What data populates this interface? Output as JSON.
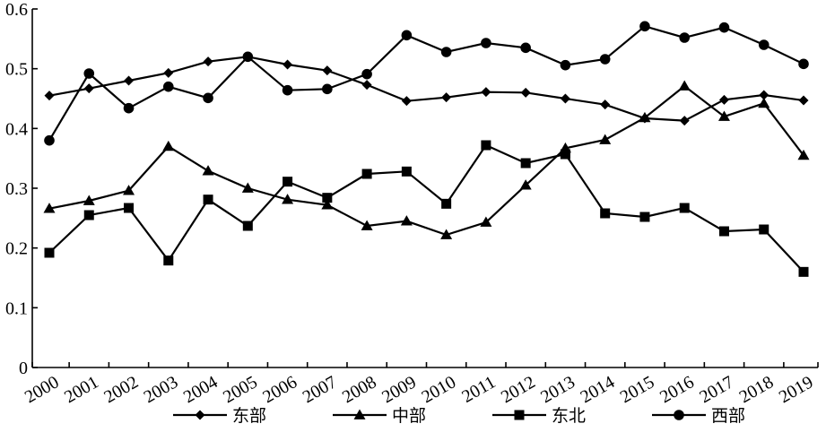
{
  "chart_data": {
    "type": "line",
    "x": [
      "2000",
      "2001",
      "2002",
      "2003",
      "2004",
      "2005",
      "2006",
      "2007",
      "2008",
      "2009",
      "2010",
      "2011",
      "2012",
      "2013",
      "2014",
      "2015",
      "2016",
      "2017",
      "2018",
      "2019"
    ],
    "y_ticks": [
      "0",
      "0.1",
      "0.2",
      "0.3",
      "0.4",
      "0.5",
      "0.6"
    ],
    "ylim": [
      0,
      0.6
    ],
    "grid": false,
    "legend_position": "bottom",
    "series": [
      {
        "name": "东部",
        "marker": "diamond",
        "values": [
          0.455,
          0.467,
          0.48,
          0.493,
          0.512,
          0.52,
          0.507,
          0.497,
          0.473,
          0.446,
          0.452,
          0.461,
          0.46,
          0.45,
          0.44,
          0.417,
          0.413,
          0.448,
          0.456,
          0.447
        ]
      },
      {
        "name": "中部",
        "marker": "triangle",
        "values": [
          0.266,
          0.279,
          0.296,
          0.37,
          0.329,
          0.3,
          0.281,
          0.272,
          0.237,
          0.245,
          0.222,
          0.243,
          0.305,
          0.367,
          0.381,
          0.418,
          0.471,
          0.42,
          0.442,
          0.355
        ]
      },
      {
        "name": "东北",
        "marker": "square",
        "values": [
          0.192,
          0.255,
          0.267,
          0.179,
          0.281,
          0.237,
          0.311,
          0.284,
          0.324,
          0.328,
          0.274,
          0.372,
          0.342,
          0.357,
          0.258,
          0.252,
          0.267,
          0.228,
          0.231,
          0.16
        ]
      },
      {
        "name": "西部",
        "marker": "circle",
        "values": [
          0.38,
          0.492,
          0.434,
          0.47,
          0.451,
          0.52,
          0.464,
          0.466,
          0.491,
          0.556,
          0.528,
          0.543,
          0.535,
          0.506,
          0.516,
          0.571,
          0.552,
          0.569,
          0.54,
          0.508
        ]
      }
    ]
  }
}
